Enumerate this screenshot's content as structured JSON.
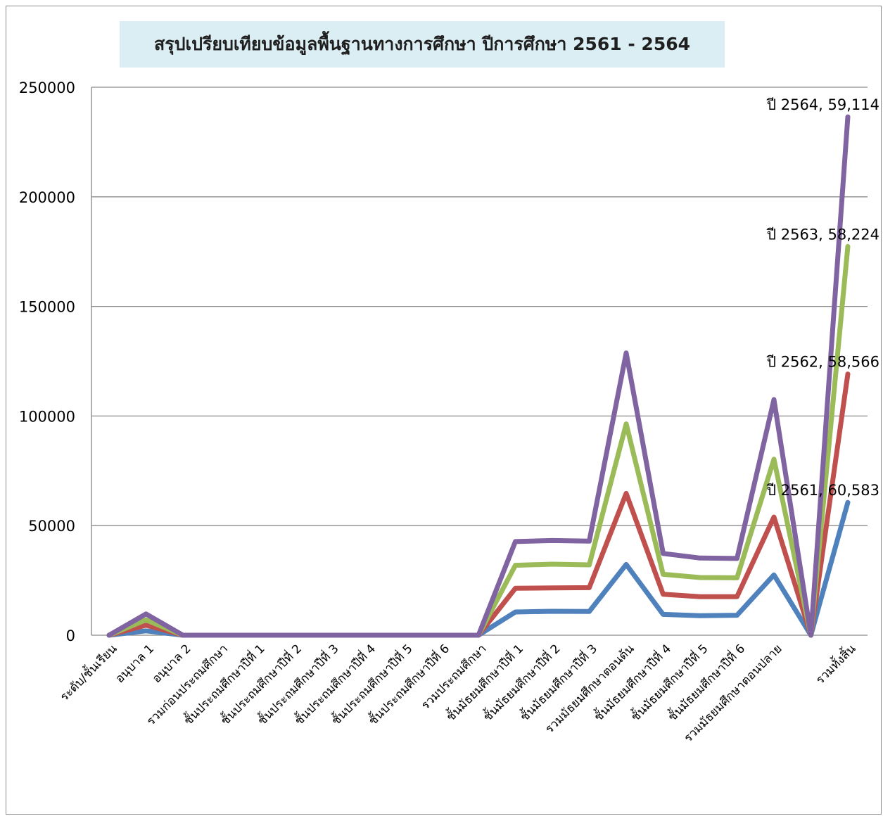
{
  "chart_data": {
    "type": "line",
    "title": "สรุปเปรียบเทียบข้อมูลพื้นฐานทางการศึกษา ปีการศึกษา 2561 - 2564",
    "xlabel": "",
    "ylabel": "",
    "ylim": [
      0,
      250000
    ],
    "yticks": [
      "0",
      "50000",
      "100000",
      "150000",
      "200000",
      "250000"
    ],
    "grid": true,
    "legend": "none",
    "categories": [
      "ระดับ/ชั้นเรียน",
      "อนุบาล 1",
      "อนุบาล 2",
      "รวมก่อนประถมศึกษา",
      "ชั้นประถมศึกษาปีที่ 1",
      "ชั้นประถมศึกษาปีที่ 2",
      "ชั้นประถมศึกษาปีที่ 3",
      "ชั้นประถมศึกษาปีที่ 4",
      "ชั้นประถมศึกษาปีที่ 5",
      "ชั้นประถมศึกษาปีที่ 6",
      "รวมประถมศึกษา",
      "ชั้นมัธยมศึกษาปีที่ 1",
      "ชั้นมัธยมศึกษาปีที่ 2",
      "ชั้นมัธยมศึกษาปีที่ 3",
      "รวมมัธยมศึกษาตอนต้น",
      "ชั้นมัธยมศึกษาปีที่ 4",
      "ชั้นมัธยมศึกษาปีที่ 5",
      "ชั้นมัธยมศึกษาปีที่ 6",
      "รวมมัธยมศึกษาตอนปลาย",
      "",
      "รวมทั้งสิ้น"
    ],
    "series": [
      {
        "name": "ปี 2561",
        "color": "#4f81bd",
        "values": [
          0,
          2000,
          0,
          0,
          0,
          0,
          0,
          0,
          0,
          0,
          0,
          10600,
          10900,
          10800,
          32300,
          9500,
          8900,
          9100,
          27500,
          0,
          60583
        ]
      },
      {
        "name": "ปี 2562",
        "color": "#c0504d",
        "values": [
          0,
          2600,
          0,
          0,
          0,
          0,
          0,
          0,
          0,
          0,
          0,
          10800,
          10700,
          10900,
          32400,
          9200,
          8700,
          8500,
          26400,
          0,
          58566
        ]
      },
      {
        "name": "ปี 2563",
        "color": "#9bbb59",
        "values": [
          0,
          2400,
          0,
          0,
          0,
          0,
          0,
          0,
          0,
          0,
          0,
          10500,
          10800,
          10400,
          31700,
          9100,
          8700,
          8600,
          26400,
          0,
          58224
        ]
      },
      {
        "name": "ปี 2564",
        "color": "#8064a2",
        "values": [
          0,
          2700,
          0,
          0,
          0,
          0,
          0,
          0,
          0,
          0,
          0,
          10800,
          10800,
          10800,
          32400,
          9500,
          8900,
          8800,
          27200,
          0,
          59114
        ]
      }
    ],
    "stacked": true,
    "data_labels": [
      "ปี 2561, 60,583",
      "ปี 2562, 58,566",
      "ปี 2563, 58,224",
      "ปี 2564, 59,114"
    ]
  }
}
